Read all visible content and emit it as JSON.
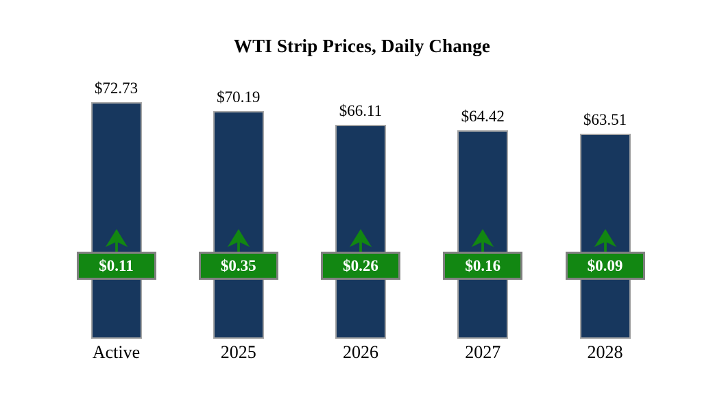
{
  "title": "WTI Strip Prices, Daily Change",
  "chart_data": {
    "type": "bar",
    "title": "WTI Strip Prices, Daily Change",
    "categories": [
      "Active",
      "2025",
      "2026",
      "2027",
      "2028"
    ],
    "series": [
      {
        "name": "WTI Strip Price",
        "values": [
          72.73,
          70.19,
          66.11,
          64.42,
          63.51
        ],
        "labels": [
          "$72.73",
          "$70.19",
          "$66.11",
          "$64.42",
          "$63.51"
        ]
      },
      {
        "name": "Daily Change",
        "values": [
          0.11,
          0.35,
          0.26,
          0.16,
          0.09
        ],
        "labels": [
          "$0.11",
          "$0.35",
          "$0.26",
          "$0.16",
          "$0.09"
        ],
        "direction": [
          "up",
          "up",
          "up",
          "up",
          "up"
        ]
      }
    ],
    "xlabel": "",
    "ylabel": "",
    "legend": "none",
    "grid": false,
    "axes_hidden": true
  },
  "icons": {
    "up_arrow": "↑"
  },
  "colors": {
    "background": "#FFFFFF",
    "text": "#000000",
    "bar_fill": "#17375E",
    "bar_border": "#A6A6A6",
    "badge_fill": "#128712",
    "badge_border": "#808080",
    "badge_text": "#FFFFFF",
    "arrow": "#128712"
  }
}
